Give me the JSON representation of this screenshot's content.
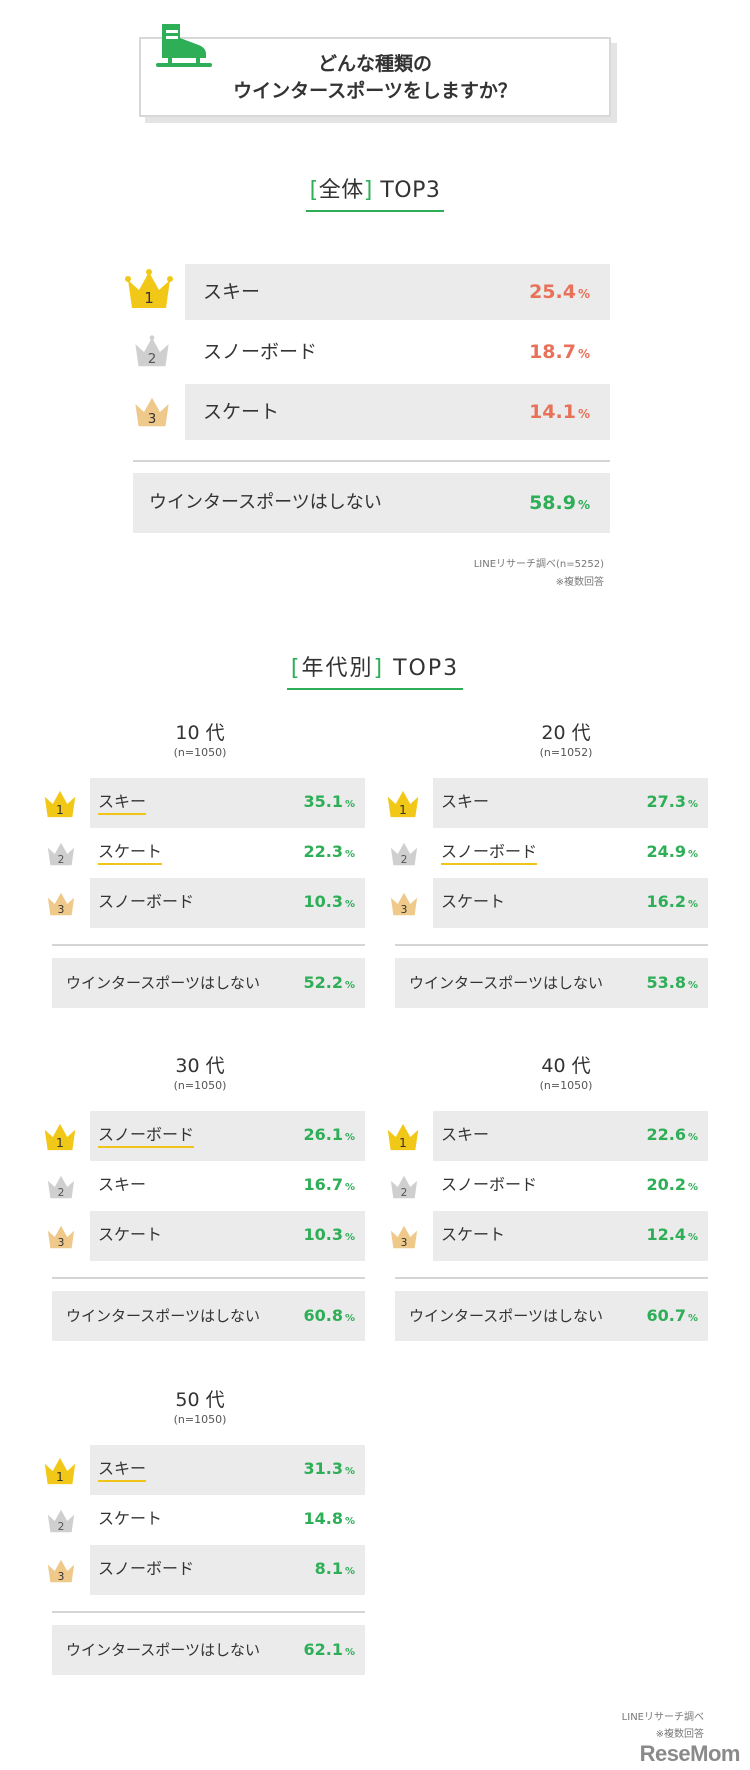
{
  "header": {
    "title_line1": "どんな種類の",
    "title_line2": "ウインタースポーツをしますか？"
  },
  "overall": {
    "heading_bracket_open": "[",
    "heading_word": "全体",
    "heading_bracket_close": "]",
    "heading_suffix": " TOP3",
    "items": [
      {
        "rank": "1",
        "label": "スキー",
        "value": "25.4",
        "unit": "%"
      },
      {
        "rank": "2",
        "label": "スノーボード",
        "value": "18.7",
        "unit": "%"
      },
      {
        "rank": "3",
        "label": "スケート",
        "value": "14.1",
        "unit": "%"
      }
    ],
    "none": {
      "label": "ウインタースポーツはしない",
      "value": "58.9",
      "unit": "%"
    },
    "source": "LINEリサーチ調べ(n=5252)",
    "note": "※複数回答"
  },
  "by_age": {
    "heading_bracket_open": "[",
    "heading_word": "年代別",
    "heading_bracket_close": "]",
    "heading_suffix": " TOP3",
    "panels": [
      {
        "age": "10 代",
        "n": "(n=1050)",
        "items": [
          {
            "rank": "1",
            "label": "スキー",
            "value": "35.1",
            "unit": "%"
          },
          {
            "rank": "2",
            "label": "スケート",
            "value": "22.3",
            "unit": "%"
          },
          {
            "rank": "3",
            "label": "スノーボード",
            "value": "10.3",
            "unit": "%"
          }
        ],
        "none": {
          "label": "ウインタースポーツはしない",
          "value": "52.2",
          "unit": "%"
        }
      },
      {
        "age": "20 代",
        "n": "(n=1052)",
        "items": [
          {
            "rank": "1",
            "label": "スキー",
            "value": "27.3",
            "unit": "%"
          },
          {
            "rank": "2",
            "label": "スノーボード",
            "value": "24.9",
            "unit": "%"
          },
          {
            "rank": "3",
            "label": "スケート",
            "value": "16.2",
            "unit": "%"
          }
        ],
        "none": {
          "label": "ウインタースポーツはしない",
          "value": "53.8",
          "unit": "%"
        }
      },
      {
        "age": "30 代",
        "n": "(n=1050)",
        "items": [
          {
            "rank": "1",
            "label": "スノーボード",
            "value": "26.1",
            "unit": "%"
          },
          {
            "rank": "2",
            "label": "スキー",
            "value": "16.7",
            "unit": "%"
          },
          {
            "rank": "3",
            "label": "スケート",
            "value": "10.3",
            "unit": "%"
          }
        ],
        "none": {
          "label": "ウインタースポーツはしない",
          "value": "60.8",
          "unit": "%"
        }
      },
      {
        "age": "40 代",
        "n": "(n=1050)",
        "items": [
          {
            "rank": "1",
            "label": "スキー",
            "value": "22.6",
            "unit": "%"
          },
          {
            "rank": "2",
            "label": "スノーボード",
            "value": "20.2",
            "unit": "%"
          },
          {
            "rank": "3",
            "label": "スケート",
            "value": "12.4",
            "unit": "%"
          }
        ],
        "none": {
          "label": "ウインタースポーツはしない",
          "value": "60.7",
          "unit": "%"
        }
      },
      {
        "age": "50 代",
        "n": "(n=1050)",
        "items": [
          {
            "rank": "1",
            "label": "スキー",
            "value": "31.3",
            "unit": "%"
          },
          {
            "rank": "2",
            "label": "スケート",
            "value": "14.8",
            "unit": "%"
          },
          {
            "rank": "3",
            "label": "スノーボード",
            "value": "8.1",
            "unit": "%"
          }
        ],
        "none": {
          "label": "ウインタースポーツはしない",
          "value": "62.1",
          "unit": "%"
        }
      }
    ]
  },
  "footer": {
    "source": "LINEリサーチ調べ",
    "note": "※複数回答",
    "logo": "ReseMom"
  },
  "colors": {
    "accent_green": "#2eae57",
    "overall_value": "#e8715a",
    "gold": "#f2c818",
    "silver": "#cfcfcf",
    "bronze": "#efc98a",
    "row_gray": "#ebebeb"
  },
  "icons": [
    "ice-skate-icon",
    "gold-crown-icon",
    "silver-crown-icon",
    "bronze-crown-icon"
  ]
}
